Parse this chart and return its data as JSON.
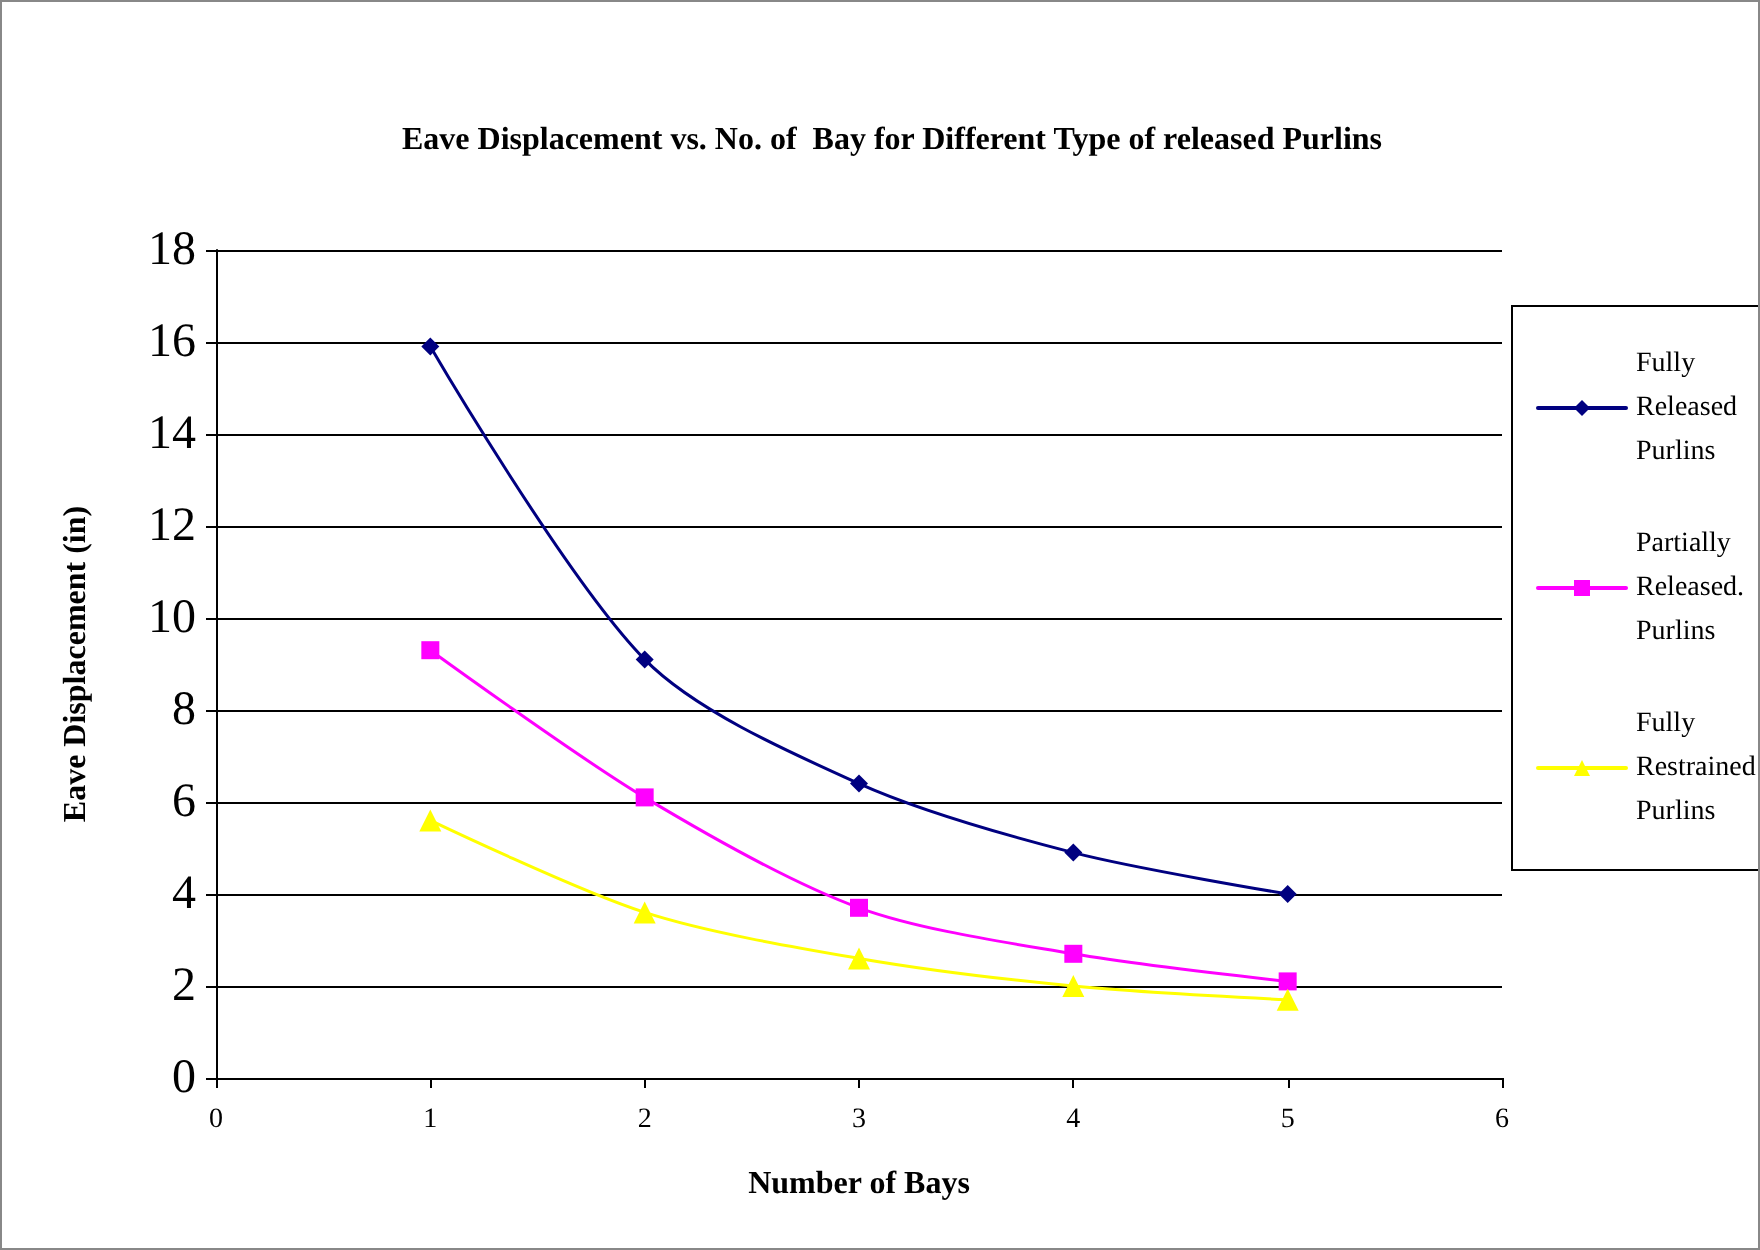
{
  "chart_data": {
    "type": "line",
    "title": "Eave Displacement vs. No. of  Bay for Different Type of released Purlins",
    "xlabel": "Number of Bays",
    "ylabel": "Eave Displacement (in)",
    "x": [
      1,
      2,
      3,
      4,
      5
    ],
    "series": [
      {
        "name": "Fully Released Purlins",
        "color": "#000080",
        "marker": "diamond",
        "values": [
          15.9,
          9.1,
          6.4,
          4.9,
          4.0
        ]
      },
      {
        "name": "Partially Released. Purlins",
        "color": "#ff00ff",
        "marker": "square",
        "values": [
          9.3,
          6.1,
          3.7,
          2.7,
          2.1
        ]
      },
      {
        "name": "Fully Restrained Purlins",
        "color": "#ffff00",
        "marker": "triangle",
        "values": [
          5.6,
          3.6,
          2.6,
          2.0,
          1.7
        ]
      }
    ],
    "xlim": [
      0,
      6
    ],
    "xticks": [
      0,
      1,
      2,
      3,
      4,
      5,
      6
    ],
    "ylim": [
      0,
      18
    ],
    "yticks": [
      0,
      2,
      4,
      6,
      8,
      10,
      12,
      14,
      16,
      18
    ],
    "grid": "y",
    "legend": "right",
    "line_style": "solid"
  }
}
